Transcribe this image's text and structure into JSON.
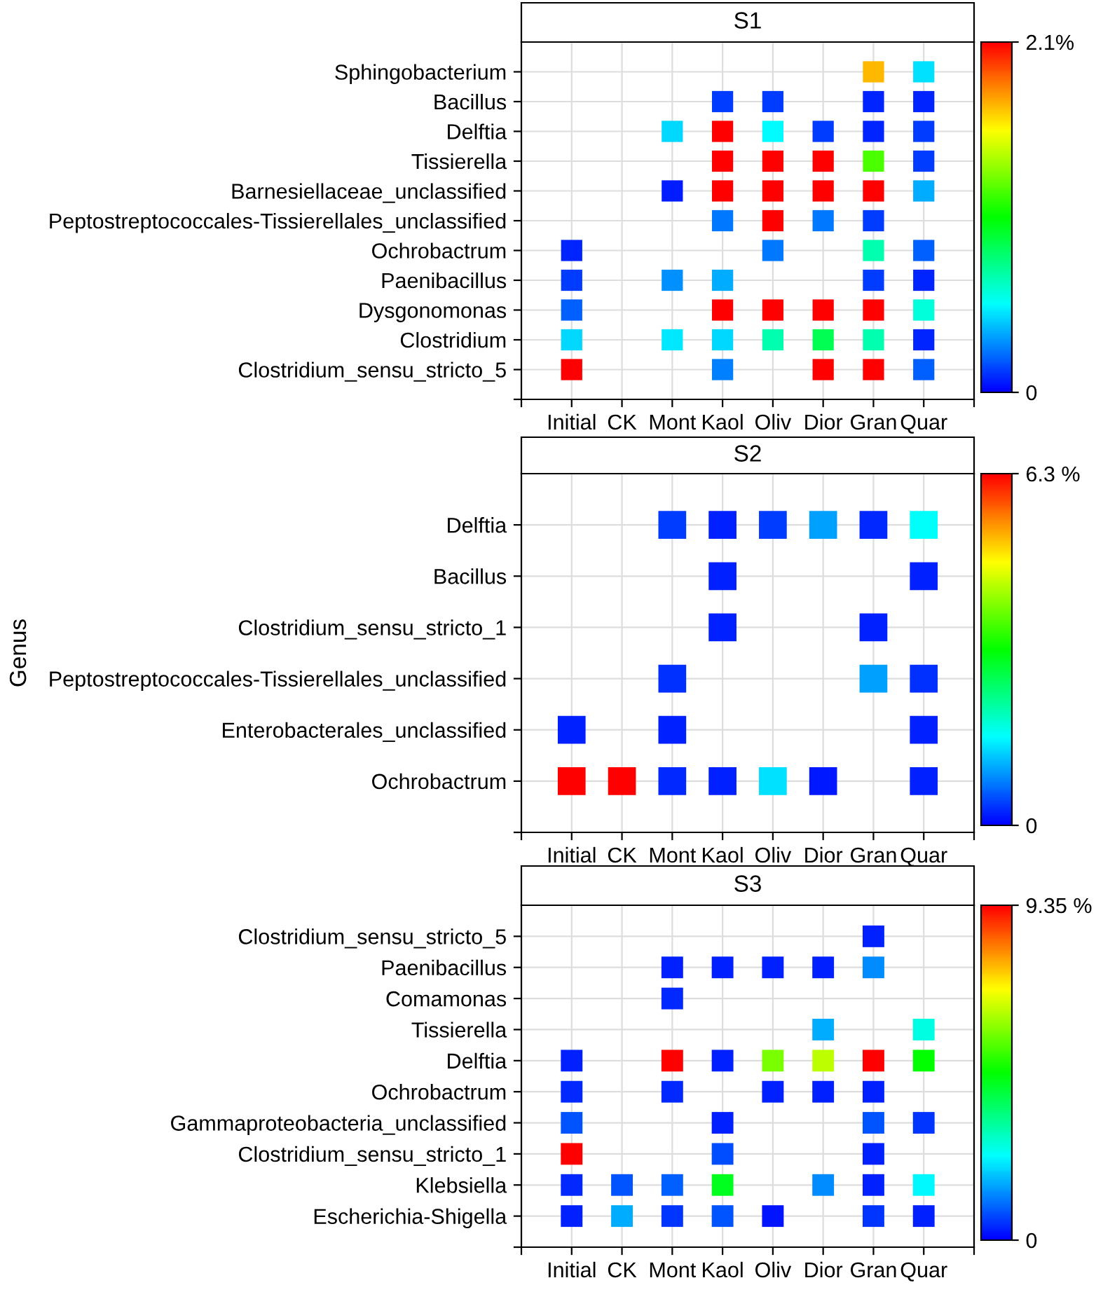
{
  "chart_data": [
    {
      "type": "heatmap",
      "title": "S1",
      "categories": [
        "Initial",
        "CK",
        "Mont",
        "Kaol",
        "Oliv",
        "Dior",
        "Gran",
        "Quar"
      ],
      "y_categories": [
        "Sphingobacterium",
        "Bacillus",
        "Delftia",
        "Tissierella",
        "Barnesiellaceae_unclassified",
        "Peptostreptococcales-Tissierellales_unclassified",
        "Ochrobactrum",
        "Paenibacillus",
        "Dysgonomonas",
        "Clostridium",
        "Clostridium_sensu_stricto_5"
      ],
      "cells": [
        [
          null,
          null,
          null,
          null,
          null,
          null,
          1.72,
          0.46
        ],
        [
          null,
          null,
          null,
          0.13,
          0.13,
          null,
          0.08,
          0.08
        ],
        [
          null,
          null,
          0.45,
          2.1,
          0.52,
          0.13,
          0.08,
          0.13
        ],
        [
          null,
          null,
          null,
          2.1,
          2.1,
          2.1,
          1.2,
          0.13
        ],
        [
          null,
          null,
          0.06,
          2.1,
          2.1,
          2.1,
          2.1,
          0.36
        ],
        [
          null,
          null,
          null,
          0.25,
          2.1,
          0.25,
          0.13,
          null
        ],
        [
          0.08,
          null,
          null,
          null,
          0.25,
          null,
          0.69,
          0.2
        ],
        [
          0.13,
          null,
          0.3,
          0.36,
          null,
          null,
          0.13,
          0.08
        ],
        [
          0.2,
          null,
          null,
          2.1,
          2.1,
          2.1,
          2.1,
          0.6
        ],
        [
          0.45,
          null,
          0.48,
          0.45,
          0.69,
          0.88,
          0.69,
          0.08
        ],
        [
          2.1,
          null,
          null,
          0.27,
          null,
          2.1,
          2.1,
          0.2
        ]
      ],
      "clim": [
        0,
        2.1
      ],
      "cticks": [
        0,
        {
          "value": 2.1,
          "label": "2.1%"
        }
      ],
      "grid": true
    },
    {
      "type": "heatmap",
      "title": "S2",
      "ylabel": "Genus",
      "categories": [
        "Initial",
        "CK",
        "Mont",
        "Kaol",
        "Oliv",
        "Dior",
        "Gran",
        "Quar"
      ],
      "y_categories": [
        "Delftia",
        "Bacillus",
        "Clostridium_sensu_stricto_1",
        "Peptostreptococcales-Tissierellales_unclassified",
        "Enterobacterales_unclassified",
        "Ochrobactrum"
      ],
      "cells": [
        [
          null,
          null,
          0.38,
          0.2,
          0.38,
          1.0,
          0.25,
          1.6
        ],
        [
          null,
          null,
          null,
          0.2,
          null,
          null,
          null,
          0.2
        ],
        [
          null,
          null,
          null,
          0.2,
          null,
          null,
          0.2,
          null
        ],
        [
          null,
          null,
          0.3,
          null,
          null,
          null,
          1.0,
          0.3
        ],
        [
          0.2,
          null,
          0.2,
          null,
          null,
          null,
          null,
          0.2
        ],
        [
          6.3,
          6.3,
          0.25,
          0.2,
          1.4,
          0.15,
          null,
          0.2
        ]
      ],
      "clim": [
        0,
        6.3
      ],
      "cticks": [
        0,
        {
          "value": 6.3,
          "label": "6.3 %"
        }
      ],
      "grid": true
    },
    {
      "type": "heatmap",
      "title": "S3",
      "categories": [
        "Initial",
        "CK",
        "Mont",
        "Kaol",
        "Oliv",
        "Dior",
        "Gran",
        "Quar"
      ],
      "y_categories": [
        "Clostridium_sensu_stricto_5",
        "Paenibacillus",
        "Comamonas",
        "Tissierella",
        "Delftia",
        "Ochrobactrum",
        "Gammaproteobacteria_unclassified",
        "Clostridium_sensu_stricto_1",
        "Klebsiella",
        "Escherichia-Shigella"
      ],
      "cells": [
        [
          null,
          null,
          null,
          null,
          null,
          null,
          0.3,
          null
        ],
        [
          null,
          null,
          0.3,
          0.3,
          0.3,
          0.3,
          1.3,
          null
        ],
        [
          null,
          null,
          0.4,
          null,
          null,
          null,
          null,
          null
        ],
        [
          null,
          null,
          null,
          null,
          null,
          1.6,
          null,
          2.6
        ],
        [
          0.3,
          null,
          9.35,
          0.3,
          5.8,
          6.4,
          9.35,
          4.7
        ],
        [
          0.4,
          null,
          0.4,
          null,
          0.3,
          0.3,
          0.3,
          null
        ],
        [
          0.8,
          null,
          null,
          0.3,
          null,
          null,
          0.8,
          0.5
        ],
        [
          9.35,
          null,
          null,
          0.7,
          null,
          null,
          0.3,
          null
        ],
        [
          0.4,
          0.8,
          0.9,
          4.4,
          null,
          1.3,
          0.3,
          2.3
        ],
        [
          0.3,
          1.6,
          0.5,
          0.8,
          0.2,
          null,
          0.5,
          0.3
        ]
      ],
      "clim": [
        0,
        9.35
      ],
      "cticks": [
        0,
        {
          "value": 9.35,
          "label": "9.35 %"
        }
      ],
      "grid": true
    }
  ]
}
